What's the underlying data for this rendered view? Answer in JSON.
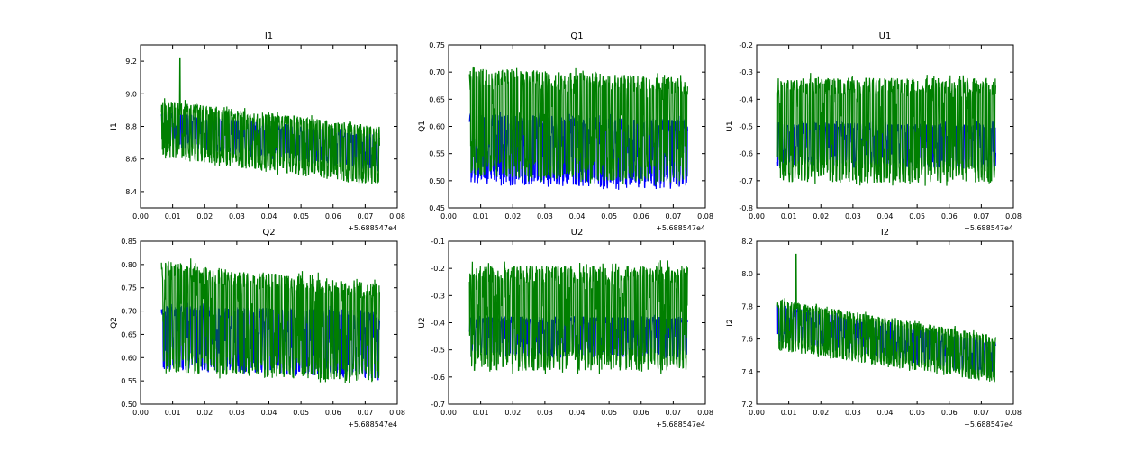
{
  "colors": {
    "blue": "#0000ff",
    "green": "#007f00",
    "axes": "#000000",
    "background": "#ffffff"
  },
  "chart_data": [
    {
      "type": "line",
      "title": "I1",
      "xlabel": "",
      "ylabel": "I1",
      "xlim": [
        0.0,
        0.08
      ],
      "ylim": [
        8.3,
        9.3
      ],
      "xticks": [
        "0.00",
        "0.01",
        "0.02",
        "0.03",
        "0.04",
        "0.05",
        "0.06",
        "0.07",
        "0.08"
      ],
      "yticks": [
        "8.4",
        "8.6",
        "8.8",
        "9.0",
        "9.2"
      ],
      "offset_label": "+5.688547e4",
      "x_range": [
        0.0065,
        0.0745
      ],
      "series": [
        {
          "color": "blue",
          "low_start": 8.68,
          "low_end": 8.52,
          "high_start": 8.9,
          "high_end": 8.76
        },
        {
          "color": "green",
          "low_start": 8.6,
          "low_end": 8.42,
          "high_start": 8.98,
          "high_end": 8.82,
          "peak": [
            0.0123,
            9.22
          ]
        }
      ]
    },
    {
      "type": "line",
      "title": "Q1",
      "xlabel": "",
      "ylabel": "Q1",
      "xlim": [
        0.0,
        0.08
      ],
      "ylim": [
        0.45,
        0.75
      ],
      "xticks": [
        "0.00",
        "0.01",
        "0.02",
        "0.03",
        "0.04",
        "0.05",
        "0.06",
        "0.07",
        "0.08"
      ],
      "yticks": [
        "0.45",
        "0.50",
        "0.55",
        "0.60",
        "0.65",
        "0.70",
        "0.75"
      ],
      "offset_label": "+5.688547e4",
      "x_range": [
        0.0065,
        0.0745
      ],
      "series": [
        {
          "color": "blue",
          "low_start": 0.49,
          "low_end": 0.48,
          "high_start": 0.63,
          "high_end": 0.62
        },
        {
          "color": "green",
          "low_start": 0.5,
          "low_end": 0.49,
          "high_start": 0.72,
          "high_end": 0.7
        }
      ]
    },
    {
      "type": "line",
      "title": "U1",
      "xlabel": "",
      "ylabel": "U1",
      "xlim": [
        0.0,
        0.08
      ],
      "ylim": [
        -0.8,
        -0.2
      ],
      "xticks": [
        "0.00",
        "0.01",
        "0.02",
        "0.03",
        "0.04",
        "0.05",
        "0.06",
        "0.07",
        "0.08"
      ],
      "yticks": [
        "-0.8",
        "-0.7",
        "-0.6",
        "-0.5",
        "-0.4",
        "-0.3",
        "-0.2"
      ],
      "offset_label": "+5.688547e4",
      "x_range": [
        0.0065,
        0.0745
      ],
      "series": [
        {
          "color": "blue",
          "low_start": -0.65,
          "low_end": -0.66,
          "high_start": -0.48,
          "high_end": -0.48
        },
        {
          "color": "green",
          "low_start": -0.72,
          "low_end": -0.72,
          "high_start": -0.3,
          "high_end": -0.3
        }
      ]
    },
    {
      "type": "line",
      "title": "Q2",
      "xlabel": "",
      "ylabel": "Q2",
      "xlim": [
        0.0,
        0.08
      ],
      "ylim": [
        0.5,
        0.85
      ],
      "xticks": [
        "0.00",
        "0.01",
        "0.02",
        "0.03",
        "0.04",
        "0.05",
        "0.06",
        "0.07",
        "0.08"
      ],
      "yticks": [
        "0.50",
        "0.55",
        "0.60",
        "0.65",
        "0.70",
        "0.75",
        "0.80",
        "0.85"
      ],
      "offset_label": "+5.688547e4",
      "x_range": [
        0.0065,
        0.0745
      ],
      "series": [
        {
          "color": "blue",
          "low_start": 0.57,
          "low_end": 0.55,
          "high_start": 0.72,
          "high_end": 0.71
        },
        {
          "color": "green",
          "low_start": 0.56,
          "low_end": 0.54,
          "high_start": 0.82,
          "high_end": 0.77
        }
      ]
    },
    {
      "type": "line",
      "title": "U2",
      "xlabel": "",
      "ylabel": "U2",
      "xlim": [
        0.0,
        0.08
      ],
      "ylim": [
        -0.7,
        -0.1
      ],
      "xticks": [
        "0.00",
        "0.01",
        "0.02",
        "0.03",
        "0.04",
        "0.05",
        "0.06",
        "0.07",
        "0.08"
      ],
      "yticks": [
        "-0.7",
        "-0.6",
        "-0.5",
        "-0.4",
        "-0.3",
        "-0.2",
        "-0.1"
      ],
      "offset_label": "+5.688547e4",
      "x_range": [
        0.0065,
        0.0745
      ],
      "series": [
        {
          "color": "blue",
          "low_start": -0.53,
          "low_end": -0.53,
          "high_start": -0.37,
          "high_end": -0.37
        },
        {
          "color": "green",
          "low_start": -0.59,
          "low_end": -0.59,
          "high_start": -0.17,
          "high_end": -0.17
        }
      ]
    },
    {
      "type": "line",
      "title": "I2",
      "xlabel": "",
      "ylabel": "I2",
      "xlim": [
        0.0,
        0.08
      ],
      "ylim": [
        7.2,
        8.2
      ],
      "xticks": [
        "0.00",
        "0.01",
        "0.02",
        "0.03",
        "0.04",
        "0.05",
        "0.06",
        "0.07",
        "0.08"
      ],
      "yticks": [
        "7.2",
        "7.4",
        "7.6",
        "7.8",
        "8.0",
        "8.2"
      ],
      "offset_label": "+5.688547e4",
      "x_range": [
        0.0065,
        0.0745
      ],
      "series": [
        {
          "color": "blue",
          "low_start": 7.58,
          "low_end": 7.36,
          "high_start": 7.82,
          "high_end": 7.6
        },
        {
          "color": "green",
          "low_start": 7.52,
          "low_end": 7.32,
          "high_start": 7.86,
          "high_end": 7.64,
          "peak": [
            0.0123,
            8.12
          ]
        }
      ]
    }
  ]
}
